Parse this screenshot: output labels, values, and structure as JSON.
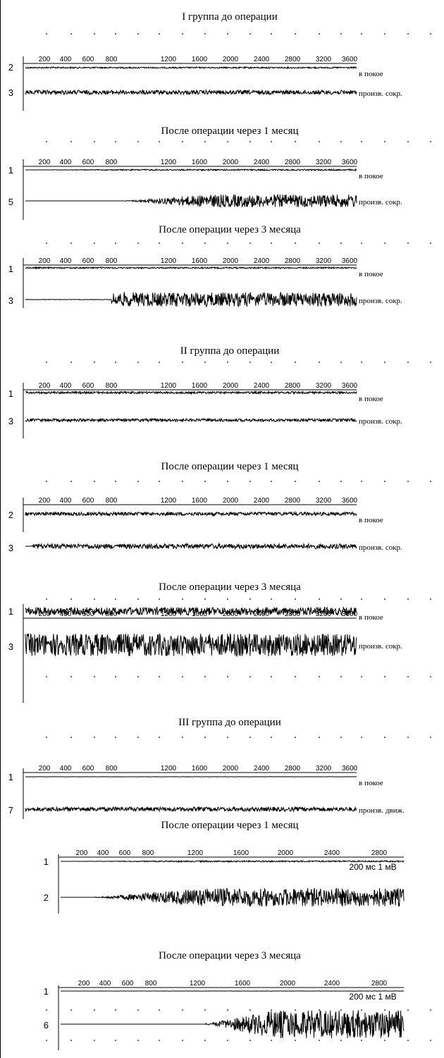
{
  "chart_data": [
    {
      "type": "line",
      "title": "I группа до операции",
      "ticks": [
        "200",
        "400",
        "600",
        "800",
        "1200",
        "1600",
        "2000",
        "2400",
        "2800",
        "3200",
        "3600"
      ],
      "series": [
        {
          "name": "в покое",
          "channel": "2",
          "amplitude": 0.1
        },
        {
          "name": "произв. сокр.",
          "channel": "3",
          "amplitude": 0.3
        }
      ]
    },
    {
      "type": "line",
      "title": "После операции через 1 месяц",
      "ticks": [
        "200",
        "400",
        "600",
        "800",
        "1200",
        "1600",
        "2000",
        "2400",
        "2800",
        "3200",
        "3600"
      ],
      "series": [
        {
          "name": "в покое",
          "channel": "1",
          "amplitude": 0.1
        },
        {
          "name": "произв. сокр.",
          "channel": "5",
          "amplitude": 0.9
        }
      ]
    },
    {
      "type": "line",
      "title": "После операции через 3 месяца",
      "ticks": [
        "200",
        "400",
        "600",
        "800",
        "1200",
        "1600",
        "2000",
        "2400",
        "2800",
        "3200",
        "3600"
      ],
      "series": [
        {
          "name": "в покое",
          "channel": "1",
          "amplitude": 0.1
        },
        {
          "name": "произв. сокр.",
          "channel": "3",
          "amplitude": 1.0
        }
      ]
    },
    {
      "type": "line",
      "title": "II группа до операции",
      "ticks": [
        "200",
        "400",
        "600",
        "800",
        "1200",
        "1600",
        "2000",
        "2400",
        "2800",
        "3200",
        "3600"
      ],
      "series": [
        {
          "name": "в покое",
          "channel": "1",
          "amplitude": 0.15
        },
        {
          "name": "произв. сокр.",
          "channel": "3",
          "amplitude": 0.2
        }
      ]
    },
    {
      "type": "line",
      "title": "После операции через 1 месяц",
      "ticks": [
        "200",
        "400",
        "600",
        "800",
        "1200",
        "1600",
        "2000",
        "2400",
        "2800",
        "3200",
        "3600"
      ],
      "series": [
        {
          "name": "в покое",
          "channel": "2",
          "amplitude": 0.25
        },
        {
          "name": "произв. сокр.",
          "channel": "3",
          "amplitude": 0.35
        }
      ]
    },
    {
      "type": "line",
      "title": "После операции через 3 месяца",
      "ticks": [
        "200",
        "400",
        "600",
        "800",
        "1200",
        "1600",
        "2000",
        "2400",
        "2800",
        "3200",
        "3600"
      ],
      "series": [
        {
          "name": "в покое",
          "channel": "1",
          "amplitude": 0.55
        },
        {
          "name": "произв. сокр.",
          "channel": "3",
          "amplitude": 1.6
        }
      ]
    },
    {
      "type": "line",
      "title": "III группа до операции",
      "ticks": [
        "200",
        "400",
        "600",
        "800",
        "1200",
        "1600",
        "2000",
        "2400",
        "2800",
        "3200",
        "3600"
      ],
      "series": [
        {
          "name": "в покое",
          "channel": "1",
          "amplitude": 0.02
        },
        {
          "name": "произв. движ.",
          "channel": "7",
          "amplitude": 0.3
        }
      ]
    },
    {
      "type": "line",
      "title": "После операции через 1 месяц",
      "ticks": [
        "200",
        "400",
        "600",
        "800",
        "1200",
        "1600",
        "2000",
        "2400",
        "2800"
      ],
      "calibration": "200 мс 1 мВ",
      "series": [
        {
          "name": "",
          "channel": "1",
          "amplitude": 0.1
        },
        {
          "name": "",
          "channel": "2",
          "amplitude": 1.3
        }
      ]
    },
    {
      "type": "line",
      "title": "После операции через 3 месяца",
      "ticks": [
        "200",
        "400",
        "600",
        "800",
        "1200",
        "1600",
        "2000",
        "2400",
        "2800"
      ],
      "calibration": "200 мс 1 мВ",
      "series": [
        {
          "name": "",
          "channel": "1",
          "amplitude": 0.02
        },
        {
          "name": "",
          "channel": "6",
          "amplitude": 2.0
        }
      ]
    }
  ]
}
